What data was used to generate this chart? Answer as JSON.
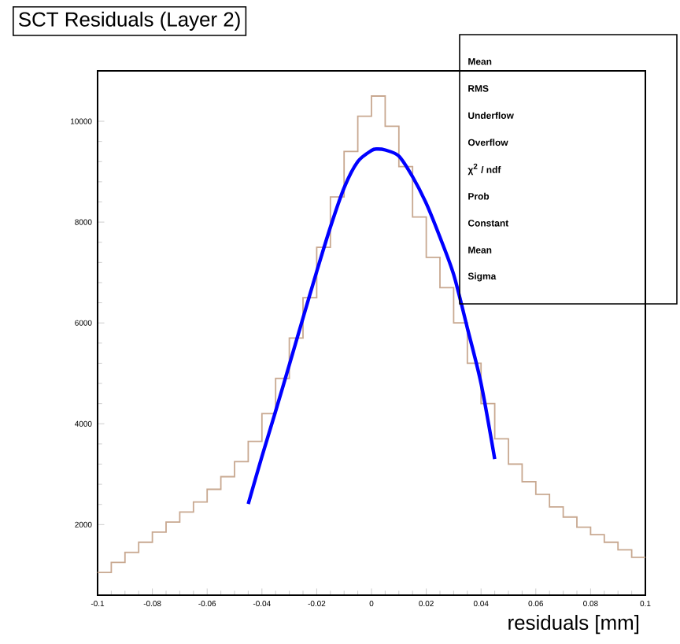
{
  "chart_data": {
    "type": "histogram",
    "title": "SCT Residuals (Layer 2)",
    "xlabel": "residuals [mm]",
    "xlim": [
      -0.1,
      0.1
    ],
    "ylim": [
      600,
      11000
    ],
    "xticks": [
      -0.1,
      -0.08,
      -0.06,
      -0.04,
      -0.02,
      0,
      0.02,
      0.04,
      0.06,
      0.08,
      0.1
    ],
    "yticks": [
      2000,
      4000,
      6000,
      8000,
      10000
    ],
    "series": [
      {
        "type": "histogram",
        "color": "#c8a890",
        "bins": [
          -0.1,
          -0.095,
          -0.09,
          -0.085,
          -0.08,
          -0.075,
          -0.07,
          -0.065,
          -0.06,
          -0.055,
          -0.05,
          -0.045,
          -0.04,
          -0.035,
          -0.03,
          -0.025,
          -0.02,
          -0.015,
          -0.01,
          -0.005,
          0,
          0.005,
          0.01,
          0.015,
          0.02,
          0.025,
          0.03,
          0.035,
          0.04,
          0.045,
          0.05,
          0.055,
          0.06,
          0.065,
          0.07,
          0.075,
          0.08,
          0.085,
          0.09,
          0.095,
          0.1
        ],
        "values": [
          1050,
          1250,
          1450,
          1650,
          1850,
          2050,
          2250,
          2450,
          2700,
          2950,
          3250,
          3650,
          4200,
          4900,
          5700,
          6500,
          7500,
          8500,
          9400,
          10100,
          10500,
          9900,
          9100,
          8100,
          7300,
          6700,
          6000,
          5200,
          4400,
          3700,
          3200,
          2850,
          2600,
          2350,
          2150,
          1950,
          1800,
          1650,
          1500,
          1350
        ]
      },
      {
        "type": "line",
        "color": "#0000ff",
        "x": [
          -0.045,
          -0.04,
          -0.035,
          -0.03,
          -0.025,
          -0.02,
          -0.015,
          -0.01,
          -0.005,
          0,
          0.002,
          0.005,
          0.01,
          0.015,
          0.02,
          0.025,
          0.03,
          0.035,
          0.04,
          0.045
        ],
        "values": [
          2410,
          3350,
          4250,
          5170,
          6100,
          7020,
          7900,
          8680,
          9200,
          9420,
          9450,
          9430,
          9310,
          8900,
          8370,
          7700,
          6960,
          5900,
          4800,
          3300
        ]
      }
    ],
    "annotations": [
      "Mean",
      "RMS",
      "Underflow",
      "Overflow",
      "χ$^{2}$ / ndf",
      "Prob",
      "Constant",
      "Mean",
      "Sigma"
    ]
  }
}
